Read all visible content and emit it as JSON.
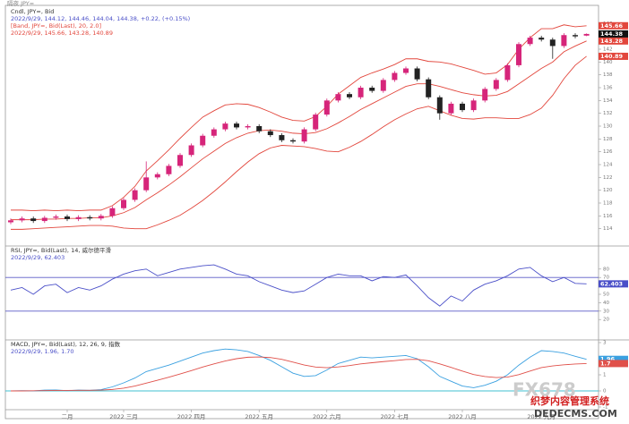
{
  "header": {
    "title": "隔夜 JPY="
  },
  "chart_data": [
    {
      "type": "candlestick",
      "title": "Cndl, JPY=, Bid",
      "subtitle": "2022/9/29, 144.12, 144.46, 144.04, 144.38, +0.22, (+0.15%)",
      "up_color": "#d6257a",
      "down_color": "#222222",
      "open": [
        115.0,
        115.3,
        115.6,
        115.2,
        115.7,
        115.9,
        115.5,
        115.8,
        115.6,
        116.0,
        117.2,
        118.5,
        120.0,
        122.0,
        122.5,
        123.8,
        125.5,
        127.0,
        128.5,
        129.5,
        130.4,
        129.8,
        130.0,
        129.2,
        128.6,
        127.8,
        127.6,
        129.5,
        131.8,
        134.0,
        135.0,
        134.5,
        136.0,
        135.5,
        137.2,
        138.3,
        139.0,
        137.3,
        134.5,
        132.0,
        133.5,
        132.5,
        134.0,
        135.8,
        137.2,
        139.5,
        142.8,
        143.8,
        143.5,
        142.5,
        144.2,
        144.12
      ],
      "high": [
        115.6,
        115.9,
        115.9,
        116.0,
        116.2,
        116.2,
        116.1,
        116.1,
        116.3,
        117.5,
        118.8,
        120.3,
        124.5,
        122.8,
        124.1,
        125.8,
        127.3,
        128.8,
        129.8,
        130.7,
        130.7,
        130.3,
        130.3,
        129.5,
        128.9,
        128.1,
        129.8,
        132.1,
        134.3,
        135.3,
        135.3,
        136.3,
        136.3,
        137.5,
        138.6,
        139.3,
        139.3,
        137.6,
        134.8,
        133.8,
        133.8,
        134.3,
        136.1,
        137.5,
        139.8,
        143.1,
        144.1,
        144.1,
        143.8,
        144.5,
        144.5,
        144.46
      ],
      "low": [
        114.7,
        115.0,
        114.9,
        114.9,
        115.4,
        115.2,
        115.2,
        115.3,
        115.3,
        115.7,
        116.9,
        118.2,
        119.7,
        121.7,
        122.2,
        123.5,
        125.2,
        126.7,
        128.2,
        129.2,
        129.5,
        129.5,
        128.9,
        128.3,
        127.5,
        127.3,
        127.3,
        129.2,
        131.5,
        133.7,
        134.2,
        134.2,
        135.2,
        135.2,
        136.9,
        138.0,
        137.0,
        134.2,
        131.0,
        131.7,
        132.2,
        132.2,
        133.7,
        135.5,
        136.9,
        139.2,
        142.5,
        143.2,
        140.5,
        142.2,
        143.7,
        144.04
      ],
      "close": [
        115.3,
        115.6,
        115.2,
        115.7,
        115.9,
        115.5,
        115.8,
        115.6,
        116.0,
        117.2,
        118.5,
        120.0,
        122.0,
        122.5,
        123.8,
        125.5,
        127.0,
        128.5,
        129.5,
        130.4,
        129.8,
        130.0,
        129.2,
        128.6,
        127.8,
        127.6,
        129.5,
        131.8,
        134.0,
        135.0,
        134.5,
        136.0,
        135.5,
        137.2,
        138.3,
        139.0,
        137.3,
        134.5,
        132.0,
        133.5,
        132.5,
        134.0,
        135.8,
        137.2,
        139.5,
        142.8,
        143.8,
        143.5,
        142.5,
        144.2,
        144.0,
        144.38
      ],
      "bands": {
        "title": "[Band, JPY=, Bid(Last), 20, 2.0]",
        "subtitle": "2022/9/29, 145.66, 143.28, 140.89",
        "color": "#e2463c",
        "series": [
          {
            "values": [
              116.9,
              116.9,
              116.8,
              116.9,
              116.8,
              116.9,
              116.8,
              116.9,
              116.9,
              117.6,
              118.9,
              120.6,
              123.0,
              124.6,
              126.3,
              128.1,
              129.8,
              131.4,
              132.4,
              133.3,
              133.5,
              133.4,
              132.9,
              132.2,
              131.4,
              130.9,
              130.8,
              131.5,
              133.1,
              135.0,
              136.3,
              137.6,
              138.3,
              138.9,
              139.6,
              140.5,
              140.5,
              140.1,
              140.0,
              139.7,
              139.2,
              138.7,
              138.1,
              138.3,
              139.6,
              142.0,
              143.8,
              145.2,
              145.2,
              145.8,
              145.5,
              145.66
            ]
          },
          {
            "values": [
              115.4,
              115.4,
              115.4,
              115.5,
              115.5,
              115.6,
              115.6,
              115.7,
              115.7,
              116.0,
              116.5,
              117.3,
              118.5,
              119.6,
              120.8,
              122.1,
              123.5,
              124.9,
              126.1,
              127.3,
              128.2,
              128.9,
              129.3,
              129.4,
              129.2,
              128.9,
              128.8,
              129.0,
              129.6,
              130.5,
              131.5,
              132.6,
              133.5,
              134.4,
              135.3,
              136.2,
              136.6,
              136.6,
              136.2,
              135.7,
              135.2,
              134.9,
              134.7,
              134.8,
              135.4,
              136.6,
              137.8,
              139.0,
              140.0,
              141.6,
              142.5,
              143.28
            ]
          },
          {
            "values": [
              113.9,
              113.9,
              114.0,
              114.1,
              114.2,
              114.3,
              114.4,
              114.5,
              114.5,
              114.4,
              114.1,
              114.0,
              114.0,
              114.6,
              115.3,
              116.1,
              117.2,
              118.4,
              119.8,
              121.3,
              122.9,
              124.4,
              125.7,
              126.6,
              127.0,
              126.9,
              126.8,
              126.5,
              126.1,
              126.0,
              126.7,
              127.6,
              128.7,
              129.9,
              131.0,
              131.9,
              132.7,
              133.1,
              132.4,
              131.7,
              131.2,
              131.1,
              131.3,
              131.3,
              131.2,
              131.2,
              131.8,
              132.8,
              134.8,
              137.4,
              139.5,
              140.89
            ]
          }
        ]
      },
      "ylim": [
        112,
        148
      ],
      "yticks": [
        114,
        116,
        118,
        120,
        122,
        124,
        126,
        128,
        130,
        132,
        134,
        136,
        138,
        140,
        142,
        144,
        146
      ]
    },
    {
      "type": "line",
      "title": "RSI, JPY=, Bid(Last), 14, 威尔德平滑",
      "subtitle": "2022/9/29, 62.403",
      "series": [
        {
          "color": "#4a4fc8",
          "values": [
            55,
            58,
            50,
            60,
            62,
            52,
            58,
            55,
            60,
            68,
            74,
            78,
            80,
            72,
            76,
            80,
            82,
            84,
            85,
            80,
            74,
            72,
            65,
            60,
            55,
            52,
            54,
            62,
            70,
            74,
            72,
            72,
            66,
            71,
            70,
            73,
            60,
            46,
            36,
            48,
            42,
            55,
            62,
            66,
            72,
            80,
            82,
            72,
            65,
            70,
            63,
            62.403
          ]
        }
      ],
      "hlines": [
        70,
        30
      ],
      "hline_color": "#5a5ac8",
      "ylim": [
        0,
        100
      ],
      "yticks": [
        20,
        30,
        40,
        50,
        60,
        70,
        80
      ]
    },
    {
      "type": "line",
      "title": "MACD, JPY=, Bid(Last), 12, 26, 9, 指数",
      "subtitle": "2022/9/29, 1.96, 1.70",
      "series": [
        {
          "color": "#3aa0e0",
          "values": [
            0.0,
            0.02,
            0.0,
            0.05,
            0.06,
            0.02,
            0.05,
            0.04,
            0.08,
            0.25,
            0.5,
            0.8,
            1.2,
            1.4,
            1.6,
            1.85,
            2.1,
            2.35,
            2.5,
            2.6,
            2.55,
            2.45,
            2.2,
            1.9,
            1.5,
            1.1,
            0.9,
            0.95,
            1.3,
            1.7,
            1.9,
            2.1,
            2.05,
            2.1,
            2.15,
            2.2,
            2.0,
            1.5,
            0.9,
            0.6,
            0.3,
            0.2,
            0.35,
            0.6,
            1.0,
            1.6,
            2.1,
            2.5,
            2.45,
            2.35,
            2.15,
            1.96
          ]
        },
        {
          "color": "#e0504a",
          "values": [
            0.0,
            0.0,
            0.01,
            0.02,
            0.03,
            0.03,
            0.04,
            0.04,
            0.05,
            0.09,
            0.17,
            0.3,
            0.48,
            0.66,
            0.85,
            1.05,
            1.26,
            1.48,
            1.68,
            1.86,
            2.0,
            2.09,
            2.11,
            2.07,
            1.96,
            1.79,
            1.61,
            1.48,
            1.44,
            1.49,
            1.57,
            1.68,
            1.75,
            1.82,
            1.88,
            1.95,
            1.96,
            1.87,
            1.68,
            1.46,
            1.23,
            1.02,
            0.89,
            0.83,
            0.86,
            1.01,
            1.23,
            1.45,
            1.55,
            1.62,
            1.67,
            1.7
          ]
        }
      ],
      "hlines": [
        0
      ],
      "hline_color": "#40c0d0",
      "ylim": [
        -1,
        3
      ],
      "yticks": [
        -1,
        0,
        1,
        2,
        3
      ],
      "categories": [
        null,
        null,
        null,
        null,
        null,
        "二月",
        null,
        null,
        null,
        null,
        "2022 三月",
        null,
        null,
        null,
        null,
        null,
        "2022 四月",
        null,
        null,
        null,
        null,
        null,
        "2022 五月",
        null,
        null,
        null,
        null,
        null,
        "2022 六月",
        null,
        null,
        null,
        null,
        null,
        "2022 七月",
        null,
        null,
        null,
        null,
        null,
        "2022 八月",
        null,
        null,
        null,
        null,
        null,
        null,
        "2022 九月",
        null,
        null,
        null,
        null
      ]
    }
  ],
  "watermark": {
    "brand": "FX678",
    "text": "织梦内容管理系统",
    "site": "DEDECMS.COM"
  }
}
